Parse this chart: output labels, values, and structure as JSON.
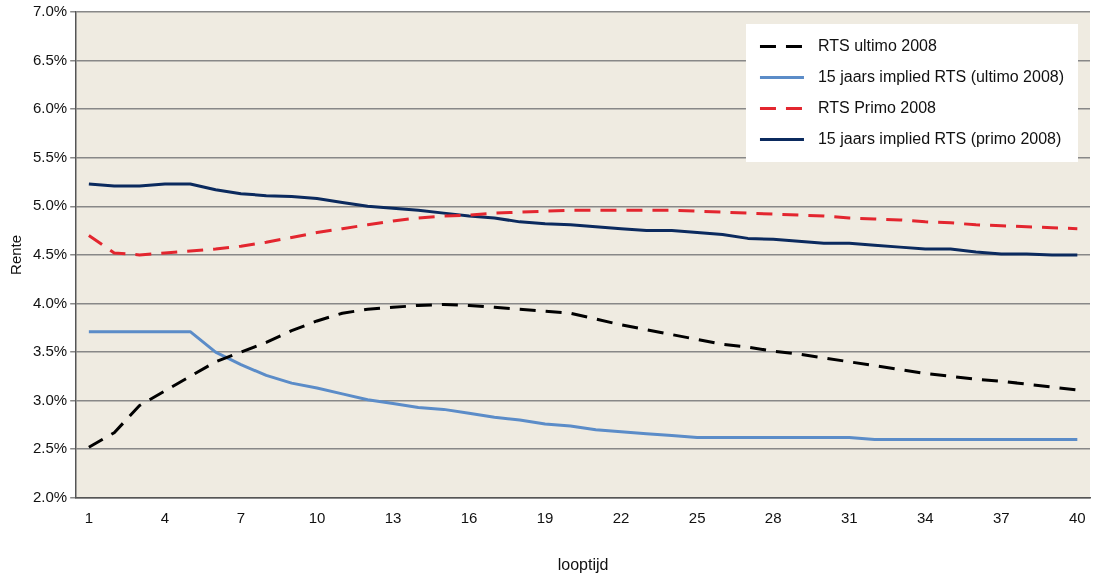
{
  "chart_data": {
    "type": "line",
    "xlabel": "looptijd",
    "ylabel": "Rente",
    "categories": [
      "1",
      null,
      null,
      "4",
      null,
      null,
      "7",
      null,
      null,
      "10",
      null,
      null,
      "13",
      null,
      null,
      "16",
      null,
      null,
      "19",
      null,
      null,
      "22",
      null,
      null,
      "25",
      null,
      null,
      "28",
      null,
      null,
      "31",
      null,
      null,
      "34",
      null,
      null,
      "37",
      null,
      null,
      "40"
    ],
    "ylim": [
      2.0,
      7.0
    ],
    "yticks": [
      {
        "value": 2.0,
        "label": "2.0%"
      },
      {
        "value": 2.5,
        "label": "2.5%"
      },
      {
        "value": 3.0,
        "label": "3.0%"
      },
      {
        "value": 3.5,
        "label": "3.5%"
      },
      {
        "value": 4.0,
        "label": "4.0%"
      },
      {
        "value": 4.5,
        "label": "4.5%"
      },
      {
        "value": 5.0,
        "label": "5.0%"
      },
      {
        "value": 5.5,
        "label": "5.5%"
      },
      {
        "value": 6.0,
        "label": "6.0%"
      },
      {
        "value": 6.5,
        "label": "6.5%"
      },
      {
        "value": 7.0,
        "label": "7.0%"
      }
    ],
    "grid": "y",
    "legend": "top right",
    "marker": "none",
    "series": [
      {
        "name": "RTS ultimo 2008",
        "color": "#000000",
        "line_style": "dashed",
        "values": [
          2.52,
          2.67,
          2.95,
          3.1,
          3.25,
          3.4,
          3.5,
          3.6,
          3.72,
          3.82,
          3.9,
          3.94,
          3.96,
          3.98,
          3.99,
          3.98,
          3.96,
          3.94,
          3.92,
          3.9,
          3.84,
          3.78,
          3.73,
          3.68,
          3.63,
          3.58,
          3.55,
          3.51,
          3.48,
          3.44,
          3.4,
          3.36,
          3.32,
          3.28,
          3.25,
          3.22,
          3.2,
          3.17,
          3.14,
          3.11
        ]
      },
      {
        "name": "15 jaars implied RTS (ultimo 2008)",
        "color": "#5b8cc8",
        "line_style": "solid",
        "values": [
          3.71,
          3.71,
          3.71,
          3.71,
          3.71,
          3.5,
          3.37,
          3.26,
          3.18,
          3.13,
          3.07,
          3.01,
          2.97,
          2.93,
          2.91,
          2.87,
          2.83,
          2.8,
          2.76,
          2.74,
          2.7,
          2.68,
          2.66,
          2.64,
          2.62,
          2.62,
          2.62,
          2.62,
          2.62,
          2.62,
          2.62,
          2.6,
          2.6,
          2.6,
          2.6,
          2.6,
          2.6,
          2.6,
          2.6,
          2.6
        ]
      },
      {
        "name": "RTS Primo 2008",
        "color": "#e3262f",
        "line_style": "dashed",
        "values": [
          4.7,
          4.52,
          4.5,
          4.52,
          4.54,
          4.56,
          4.59,
          4.63,
          4.68,
          4.73,
          4.77,
          4.81,
          4.85,
          4.88,
          4.9,
          4.91,
          4.93,
          4.94,
          4.95,
          4.96,
          4.96,
          4.96,
          4.96,
          4.96,
          4.95,
          4.94,
          4.93,
          4.92,
          4.91,
          4.9,
          4.88,
          4.87,
          4.86,
          4.84,
          4.83,
          4.81,
          4.8,
          4.79,
          4.78,
          4.77
        ]
      },
      {
        "name": "15 jaars implied RTS (primo 2008)",
        "color": "#0b2a5e",
        "line_style": "solid",
        "values": [
          5.23,
          5.21,
          5.21,
          5.23,
          5.23,
          5.17,
          5.13,
          5.11,
          5.1,
          5.08,
          5.04,
          5.0,
          4.98,
          4.96,
          4.93,
          4.9,
          4.88,
          4.84,
          4.82,
          4.81,
          4.79,
          4.77,
          4.75,
          4.75,
          4.73,
          4.71,
          4.67,
          4.66,
          4.64,
          4.62,
          4.62,
          4.6,
          4.58,
          4.56,
          4.56,
          4.53,
          4.51,
          4.51,
          4.5,
          4.5
        ]
      }
    ]
  }
}
